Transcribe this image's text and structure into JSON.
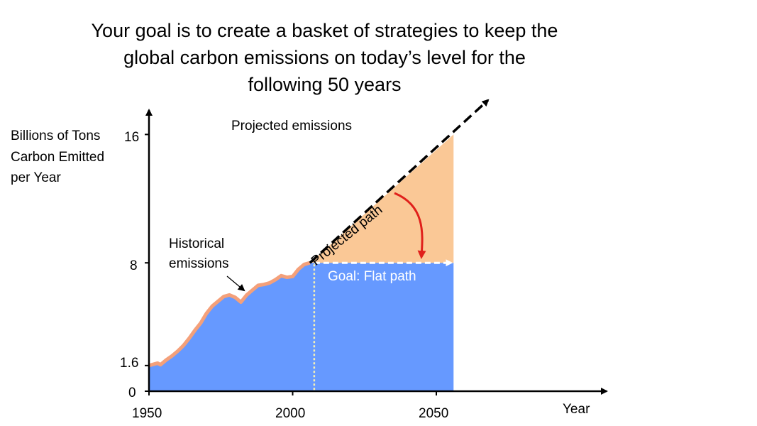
{
  "title_lines": [
    "Your goal is to create a basket of strategies to keep the",
    "global carbon emissions on today’s level for the",
    "following 50 years"
  ],
  "chart_data": {
    "type": "area",
    "title": "Your goal is to create a basket of strategies to keep the global carbon emissions on today’s level for the following 50 years",
    "ylabel_lines": [
      "Billions of Tons",
      "Carbon Emitted",
      "per Year"
    ],
    "xlabel": "Year",
    "x_ticks": [
      1950,
      2000,
      2050
    ],
    "y_ticks": [
      0,
      1.6,
      8,
      16
    ],
    "xlim": [
      1950,
      2110
    ],
    "ylim": [
      0,
      17
    ],
    "historical": {
      "name": "Historical emissions",
      "x": [
        1950,
        1953,
        1954,
        1956,
        1958,
        1960,
        1962,
        1964,
        1966,
        1968,
        1970,
        1972,
        1974,
        1976,
        1978,
        1980,
        1982,
        1984,
        1986,
        1988,
        1990,
        1992,
        1994,
        1996,
        1998,
        2000,
        2002,
        2004,
        2006
      ],
      "y": [
        1.6,
        1.75,
        1.65,
        1.95,
        2.2,
        2.5,
        2.85,
        3.3,
        3.8,
        4.25,
        4.85,
        5.3,
        5.6,
        5.9,
        6.0,
        5.85,
        5.55,
        6.0,
        6.3,
        6.6,
        6.65,
        6.75,
        6.95,
        7.2,
        7.1,
        7.15,
        7.6,
        7.9,
        8.0
      ]
    },
    "projected_path": {
      "name": "Projected path",
      "x": [
        2006,
        2056
      ],
      "y": [
        8,
        16
      ]
    },
    "goal_path": {
      "name": "Goal: Flat path",
      "x": [
        2006,
        2056
      ],
      "y": [
        8,
        8
      ]
    },
    "annotations": {
      "projected_emissions": "Projected emissions",
      "projected_path": "Projected path",
      "goal": "Goal: Flat path",
      "historical": [
        "Historical",
        "emissions"
      ]
    },
    "colors": {
      "historical_fill": "#6699ff",
      "historical_line": "#f4a07a",
      "projected_fill": "#fac896",
      "arrow": "#e0201b",
      "axis": "#000000",
      "goal_line": "#ffffff",
      "divider": "#f5f0b5"
    }
  }
}
